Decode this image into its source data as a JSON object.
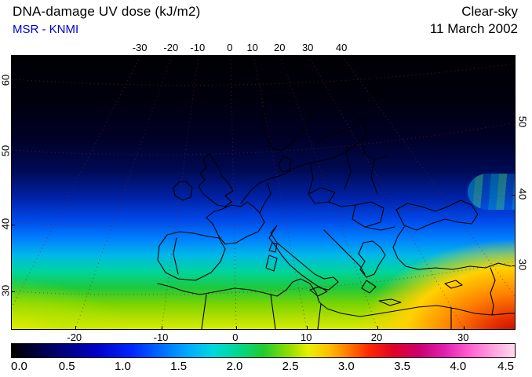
{
  "header": {
    "title": "DNA-damage UV dose (kJ/m2)",
    "source": "MSR - KNMI",
    "condition": "Clear-sky",
    "date": "11 March 2002"
  },
  "colors": {
    "source_text": "#0000cc",
    "title_text": "#000000"
  },
  "chart_data": {
    "type": "heatmap",
    "title": "DNA-damage UV dose (kJ/m2)",
    "source": "MSR - KNMI",
    "sky_condition": "Clear-sky",
    "date": "11 March 2002",
    "units": "kJ/m2",
    "region": "Europe and North Africa",
    "value_range": [
      0.0,
      4.5
    ],
    "spatial_pattern": "Dose increases from near 0 kJ/m2 over northern Scandinavia to about 3 kJ/m2 over northeast Africa and the eastern Mediterranean; warm-colored maximum in the bottom-right (southeast) corner",
    "axes": {
      "top": {
        "labels": [
          "-30",
          "-20",
          "-10",
          "0",
          "10",
          "20",
          "30",
          "40"
        ],
        "pos_pct": [
          25.6,
          31.8,
          37.1,
          43.5,
          48.0,
          53.4,
          59.0,
          65.7
        ]
      },
      "bottom": {
        "labels": [
          "-20",
          "-10",
          "0",
          "10",
          "20",
          "30"
        ],
        "pos_pct": [
          12.6,
          29.8,
          44.6,
          58.7,
          72.7,
          89.9
        ]
      },
      "left": {
        "labels": [
          "60",
          "50",
          "40",
          "30"
        ],
        "pos_pct": [
          9.2,
          35.0,
          61.8,
          86.2
        ]
      },
      "right": {
        "labels": [
          "50",
          "40",
          "30"
        ],
        "pos_pct": [
          24.4,
          50.9,
          76.7
        ]
      }
    },
    "colorbar": {
      "tick_labels": [
        "0.0",
        "0.5",
        "1.0",
        "1.5",
        "2.0",
        "2.5",
        "3.0",
        "3.5",
        "4.0",
        "4.5"
      ],
      "stops": [
        {
          "pos": 0,
          "color": "#000000"
        },
        {
          "pos": 9,
          "color": "#000070"
        },
        {
          "pos": 17,
          "color": "#0000c8"
        },
        {
          "pos": 24,
          "color": "#0028ff"
        },
        {
          "pos": 30,
          "color": "#0070ff"
        },
        {
          "pos": 35,
          "color": "#00aaff"
        },
        {
          "pos": 40,
          "color": "#00d8e0"
        },
        {
          "pos": 45,
          "color": "#00d890"
        },
        {
          "pos": 50,
          "color": "#20cc30"
        },
        {
          "pos": 55,
          "color": "#90dc00"
        },
        {
          "pos": 59,
          "color": "#e8f000"
        },
        {
          "pos": 63,
          "color": "#ffc000"
        },
        {
          "pos": 67,
          "color": "#ff7800"
        },
        {
          "pos": 71,
          "color": "#ff2800"
        },
        {
          "pos": 76,
          "color": "#e00028"
        },
        {
          "pos": 81,
          "color": "#cc0070"
        },
        {
          "pos": 86,
          "color": "#e020b0"
        },
        {
          "pos": 91,
          "color": "#ff60d0"
        },
        {
          "pos": 96,
          "color": "#ffa8e0"
        },
        {
          "pos": 100,
          "color": "#ffd8ee"
        }
      ]
    }
  }
}
